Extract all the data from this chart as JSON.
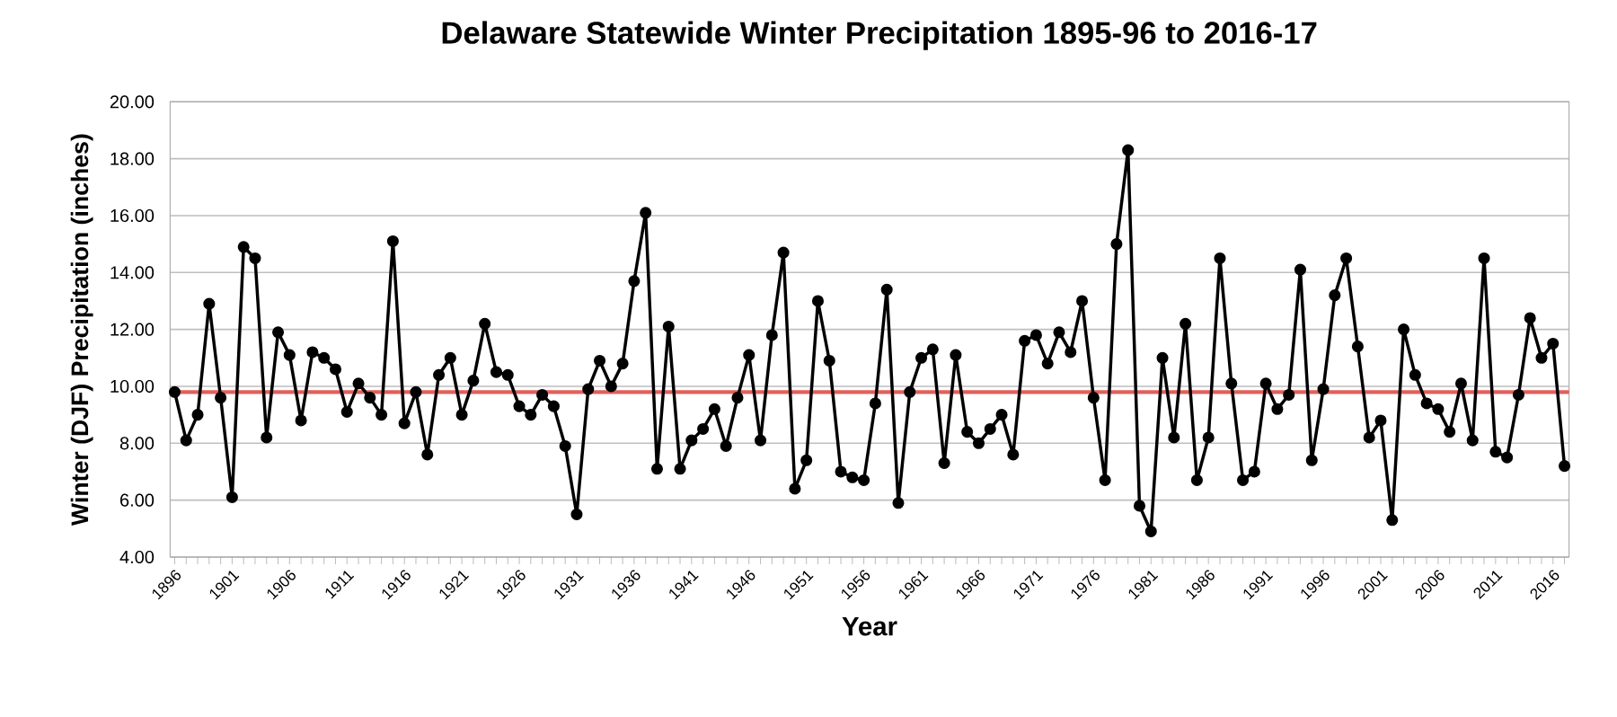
{
  "chart_data": {
    "type": "line",
    "title": "Delaware Statewide Winter Precipitation 1895-96  to 2016-17",
    "xlabel": "Year",
    "ylabel": "Winter (DJF)  Precipitation (inches)",
    "categories": [
      "1896",
      null,
      null,
      null,
      null,
      "1901",
      null,
      null,
      null,
      null,
      "1906",
      null,
      null,
      null,
      null,
      "1911",
      null,
      null,
      null,
      null,
      "1916",
      null,
      null,
      null,
      null,
      "1921",
      null,
      null,
      null,
      null,
      "1926",
      null,
      null,
      null,
      null,
      "1931",
      null,
      null,
      null,
      null,
      "1936",
      null,
      null,
      null,
      null,
      "1941",
      null,
      null,
      null,
      null,
      "1946",
      null,
      null,
      null,
      null,
      "1951",
      null,
      null,
      null,
      null,
      "1956",
      null,
      null,
      null,
      null,
      "1961",
      null,
      null,
      null,
      null,
      "1966",
      null,
      null,
      null,
      null,
      "1971",
      null,
      null,
      null,
      null,
      "1976",
      null,
      null,
      null,
      null,
      "1981",
      null,
      null,
      null,
      null,
      "1986",
      null,
      null,
      null,
      null,
      "1991",
      null,
      null,
      null,
      null,
      "1996",
      null,
      null,
      null,
      null,
      "2001",
      null,
      null,
      null,
      null,
      "2006",
      null,
      null,
      null,
      null,
      "2011",
      null,
      null,
      null,
      null,
      "2016",
      null
    ],
    "series": [
      {
        "color": "#000000",
        "values": [
          9.8,
          8.1,
          9.0,
          12.9,
          9.6,
          6.1,
          14.9,
          14.5,
          8.2,
          11.9,
          11.1,
          8.8,
          11.2,
          11.0,
          10.6,
          9.1,
          10.1,
          9.6,
          9.0,
          15.1,
          8.7,
          9.8,
          7.6,
          10.4,
          11.0,
          9.0,
          10.2,
          12.2,
          10.5,
          10.4,
          9.3,
          9.0,
          9.7,
          9.3,
          7.9,
          5.5,
          9.9,
          10.9,
          10.0,
          10.8,
          13.7,
          16.1,
          7.1,
          12.1,
          7.1,
          8.1,
          8.5,
          9.2,
          7.9,
          9.6,
          11.1,
          8.1,
          11.8,
          14.7,
          6.4,
          7.4,
          13.0,
          10.9,
          7.0,
          6.8,
          6.7,
          9.4,
          13.4,
          5.9,
          9.8,
          11.0,
          11.3,
          7.3,
          11.1,
          8.4,
          8.0,
          8.5,
          9.0,
          7.6,
          11.6,
          11.8,
          10.8,
          11.9,
          11.2,
          13.0,
          9.6,
          6.7,
          15.0,
          18.3,
          5.8,
          4.9,
          11.0,
          8.2,
          12.2,
          6.7,
          8.2,
          14.5,
          10.1,
          6.7,
          7.0,
          10.1,
          9.2,
          9.7,
          14.1,
          7.4,
          9.9,
          13.2,
          14.5,
          11.4,
          8.2,
          8.8,
          5.3,
          12.0,
          10.4,
          9.4,
          9.2,
          8.4,
          10.1,
          8.1,
          14.5,
          7.7,
          7.5,
          9.7,
          12.4,
          11.0,
          11.5,
          7.2
        ]
      }
    ],
    "ylim": [
      4,
      20
    ],
    "yticks": [
      {
        "value": 4,
        "label": "4.00"
      },
      {
        "value": 6,
        "label": "6.00"
      },
      {
        "value": 8,
        "label": "8.00"
      },
      {
        "value": 10,
        "label": "10.00"
      },
      {
        "value": 12,
        "label": "12.00"
      },
      {
        "value": 14,
        "label": "14.00"
      },
      {
        "value": 16,
        "label": "16.00"
      },
      {
        "value": 18,
        "label": "18.00"
      },
      {
        "value": 20,
        "label": "20.00"
      }
    ],
    "ref_lines": [
      {
        "axis": "y",
        "value": 9.8,
        "color": "#e0605a"
      }
    ],
    "grid": "y",
    "marker": "circle",
    "line_style": "solid"
  }
}
